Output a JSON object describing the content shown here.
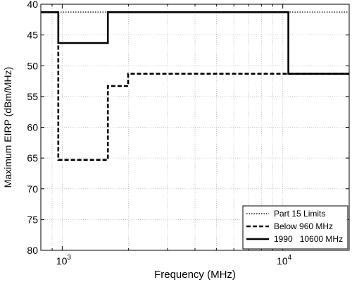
{
  "chart_data": {
    "type": "line",
    "xlabel": "Frequency  (MHz)",
    "ylabel": "Maximum EIRP (dBm/MHz)",
    "x_scale": "log",
    "xlim": [
      800,
      20000
    ],
    "ylim": [
      80,
      40
    ],
    "y_inverted": true,
    "grid": true,
    "legend_position": "bottom-right",
    "x_tick_labels": [
      {
        "value": 1000,
        "mantissa": "10",
        "exponent": "3"
      },
      {
        "value": 10000,
        "mantissa": "10",
        "exponent": "4"
      }
    ],
    "y_ticks": [
      40,
      45,
      50,
      55,
      60,
      65,
      70,
      75,
      80
    ],
    "series": [
      {
        "name": "Part 15 Limits",
        "style": "dotted",
        "color": "#555555",
        "points": [
          [
            800,
            41.3
          ],
          [
            20000,
            41.3
          ]
        ]
      },
      {
        "name": "Below 960 MHz",
        "style": "dashed",
        "color": "#000000",
        "points": [
          [
            800,
            41.3
          ],
          [
            960,
            41.3
          ],
          [
            960,
            65.3
          ],
          [
            1610,
            65.3
          ],
          [
            1610,
            53.3
          ],
          [
            1990,
            53.3
          ],
          [
            1990,
            51.3
          ],
          [
            20000,
            51.3
          ]
        ]
      },
      {
        "name": "1990   10600 MHz",
        "style": "solid",
        "color": "#000000",
        "points": [
          [
            800,
            41.3
          ],
          [
            960,
            41.3
          ],
          [
            960,
            46.3
          ],
          [
            1610,
            46.3
          ],
          [
            1610,
            41.3
          ],
          [
            10600,
            41.3
          ],
          [
            10600,
            51.3
          ],
          [
            20000,
            51.3
          ]
        ]
      }
    ]
  }
}
